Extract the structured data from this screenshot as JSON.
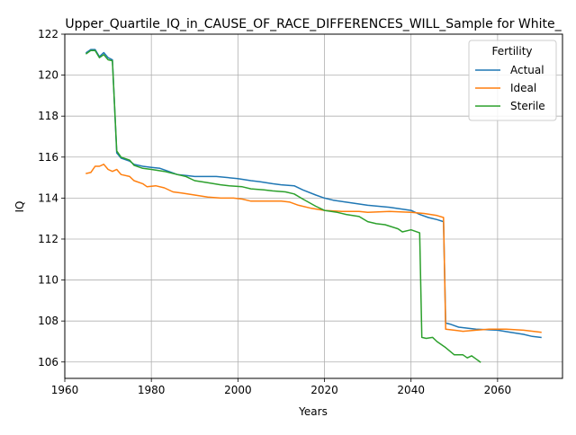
{
  "chart_data": {
    "type": "line",
    "title": "Upper_Quartile_IQ_in_CAUSE_OF_RACE_DIFFERENCES_WILL_Sample for White_",
    "xlabel": "Years",
    "ylabel": "IQ",
    "xlim": [
      1960,
      2075
    ],
    "ylim": [
      105.2,
      122
    ],
    "xticks": [
      1960,
      1980,
      2000,
      2020,
      2040,
      2060
    ],
    "yticks": [
      106,
      108,
      110,
      112,
      114,
      116,
      118,
      120,
      122
    ],
    "grid": true,
    "legend": {
      "title": "Fertility",
      "placement": "top-right"
    },
    "series": [
      {
        "name": "Actual",
        "color": "#1f77b4",
        "points": [
          [
            1965,
            121.1
          ],
          [
            1966,
            121.25
          ],
          [
            1967,
            121.25
          ],
          [
            1968,
            120.9
          ],
          [
            1969,
            121.1
          ],
          [
            1970,
            120.85
          ],
          [
            1971,
            120.75
          ],
          [
            1972,
            116.2
          ],
          [
            1973,
            115.95
          ],
          [
            1975,
            115.8
          ],
          [
            1976,
            115.65
          ],
          [
            1978,
            115.55
          ],
          [
            1980,
            115.5
          ],
          [
            1982,
            115.45
          ],
          [
            1984,
            115.3
          ],
          [
            1986,
            115.15
          ],
          [
            1988,
            115.1
          ],
          [
            1990,
            115.05
          ],
          [
            1995,
            115.05
          ],
          [
            2000,
            114.95
          ],
          [
            2003,
            114.85
          ],
          [
            2005,
            114.8
          ],
          [
            2008,
            114.7
          ],
          [
            2010,
            114.65
          ],
          [
            2013,
            114.6
          ],
          [
            2015,
            114.4
          ],
          [
            2018,
            114.15
          ],
          [
            2020,
            114.0
          ],
          [
            2022,
            113.9
          ],
          [
            2025,
            113.8
          ],
          [
            2030,
            113.65
          ],
          [
            2035,
            113.55
          ],
          [
            2040,
            113.4
          ],
          [
            2042,
            113.2
          ],
          [
            2044,
            113.05
          ],
          [
            2046,
            112.95
          ],
          [
            2047.5,
            112.85
          ],
          [
            2048,
            107.9
          ],
          [
            2049,
            107.85
          ],
          [
            2051,
            107.7
          ],
          [
            2055,
            107.6
          ],
          [
            2060,
            107.55
          ],
          [
            2063,
            107.45
          ],
          [
            2066,
            107.35
          ],
          [
            2068,
            107.25
          ],
          [
            2070,
            107.2
          ]
        ]
      },
      {
        "name": "Ideal",
        "color": "#ff7f0e",
        "points": [
          [
            1965,
            115.2
          ],
          [
            1966,
            115.25
          ],
          [
            1967,
            115.55
          ],
          [
            1968,
            115.55
          ],
          [
            1969,
            115.65
          ],
          [
            1970,
            115.4
          ],
          [
            1971,
            115.3
          ],
          [
            1972,
            115.4
          ],
          [
            1973,
            115.15
          ],
          [
            1975,
            115.05
          ],
          [
            1976,
            114.85
          ],
          [
            1978,
            114.7
          ],
          [
            1979,
            114.55
          ],
          [
            1981,
            114.6
          ],
          [
            1983,
            114.5
          ],
          [
            1985,
            114.3
          ],
          [
            1987,
            114.25
          ],
          [
            1990,
            114.15
          ],
          [
            1993,
            114.05
          ],
          [
            1996,
            114.0
          ],
          [
            1999,
            114.0
          ],
          [
            2001,
            113.95
          ],
          [
            2003,
            113.85
          ],
          [
            2006,
            113.85
          ],
          [
            2010,
            113.85
          ],
          [
            2012,
            113.8
          ],
          [
            2014,
            113.65
          ],
          [
            2017,
            113.5
          ],
          [
            2020,
            113.4
          ],
          [
            2024,
            113.35
          ],
          [
            2028,
            113.35
          ],
          [
            2030,
            113.3
          ],
          [
            2035,
            113.35
          ],
          [
            2040,
            113.3
          ],
          [
            2043,
            113.25
          ],
          [
            2046,
            113.15
          ],
          [
            2047.5,
            113.05
          ],
          [
            2048,
            107.6
          ],
          [
            2050,
            107.55
          ],
          [
            2052,
            107.5
          ],
          [
            2055,
            107.55
          ],
          [
            2058,
            107.6
          ],
          [
            2062,
            107.6
          ],
          [
            2066,
            107.55
          ],
          [
            2070,
            107.45
          ]
        ]
      },
      {
        "name": "Sterile",
        "color": "#2ca02c",
        "points": [
          [
            1965,
            121.05
          ],
          [
            1966,
            121.2
          ],
          [
            1967,
            121.2
          ],
          [
            1968,
            120.85
          ],
          [
            1969,
            121.0
          ],
          [
            1970,
            120.75
          ],
          [
            1971,
            120.7
          ],
          [
            1972,
            116.3
          ],
          [
            1973,
            116.0
          ],
          [
            1975,
            115.85
          ],
          [
            1976,
            115.6
          ],
          [
            1978,
            115.45
          ],
          [
            1980,
            115.4
          ],
          [
            1983,
            115.3
          ],
          [
            1986,
            115.15
          ],
          [
            1988,
            115.05
          ],
          [
            1990,
            114.85
          ],
          [
            1993,
            114.75
          ],
          [
            1996,
            114.65
          ],
          [
            1998,
            114.6
          ],
          [
            2001,
            114.55
          ],
          [
            2003,
            114.45
          ],
          [
            2006,
            114.4
          ],
          [
            2008,
            114.35
          ],
          [
            2011,
            114.3
          ],
          [
            2013,
            114.2
          ],
          [
            2015,
            113.95
          ],
          [
            2018,
            113.6
          ],
          [
            2020,
            113.4
          ],
          [
            2023,
            113.3
          ],
          [
            2025,
            113.2
          ],
          [
            2028,
            113.1
          ],
          [
            2030,
            112.85
          ],
          [
            2032,
            112.75
          ],
          [
            2034,
            112.7
          ],
          [
            2037,
            112.5
          ],
          [
            2038,
            112.35
          ],
          [
            2040,
            112.45
          ],
          [
            2042,
            112.3
          ],
          [
            2042.5,
            107.2
          ],
          [
            2043.5,
            107.15
          ],
          [
            2045,
            107.2
          ],
          [
            2046,
            107.0
          ],
          [
            2048,
            106.7
          ],
          [
            2050,
            106.35
          ],
          [
            2052,
            106.35
          ],
          [
            2053,
            106.2
          ],
          [
            2054,
            106.3
          ],
          [
            2055,
            106.15
          ],
          [
            2056,
            106.0
          ]
        ]
      }
    ]
  }
}
